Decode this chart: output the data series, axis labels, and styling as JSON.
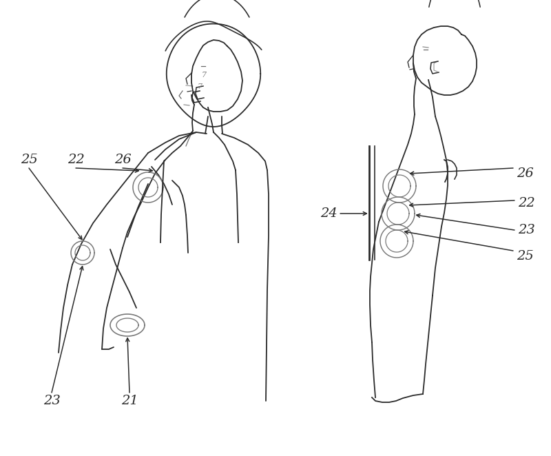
{
  "bg_color": "#ffffff",
  "line_color": "#2a2a2a",
  "fig_width": 8.0,
  "fig_height": 6.62,
  "lw": 1.3
}
